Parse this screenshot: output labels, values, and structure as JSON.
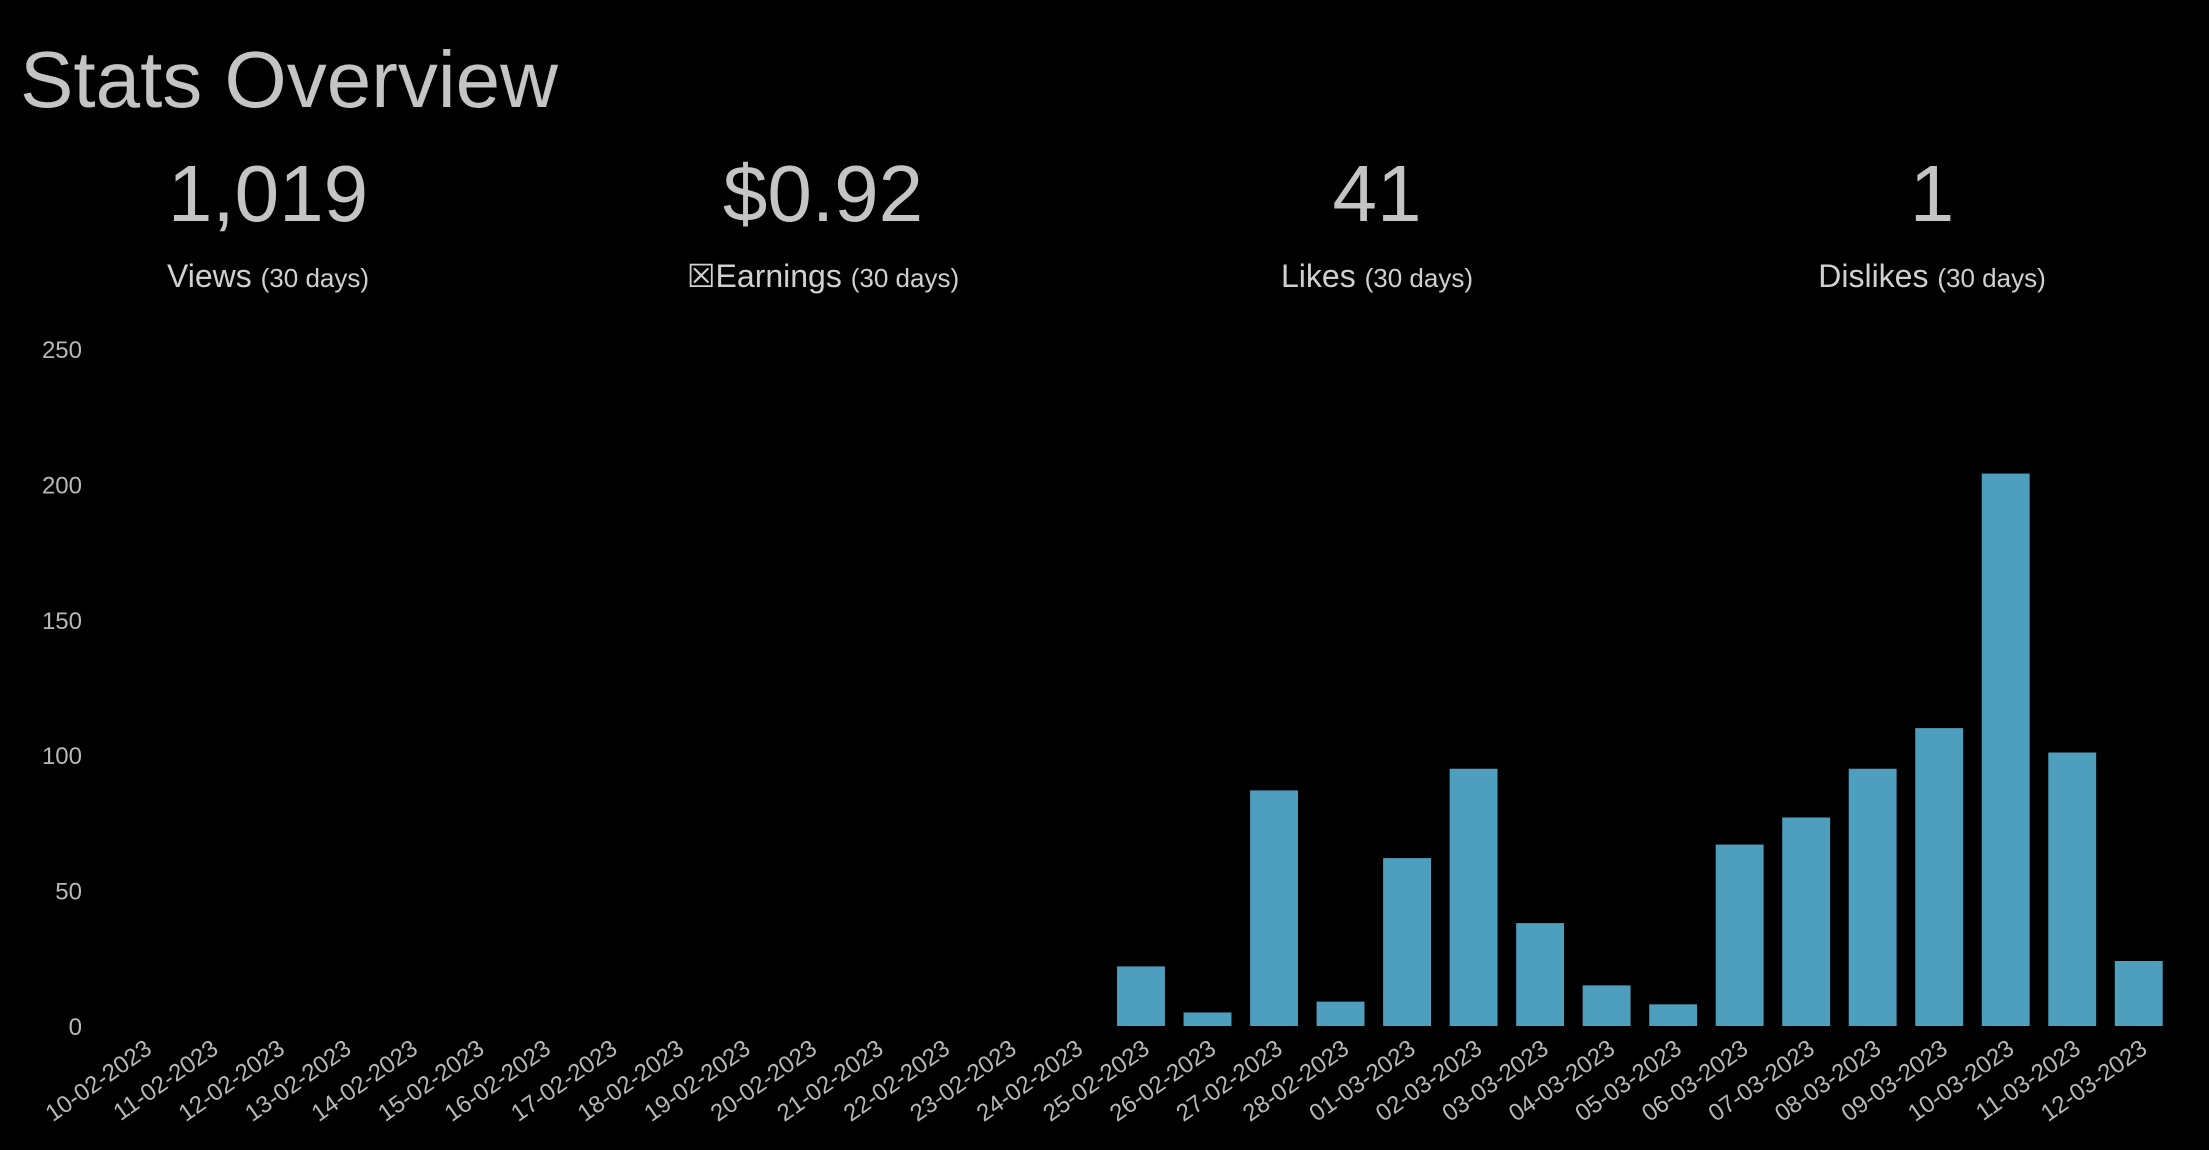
{
  "page_title": "Stats Overview",
  "stats": [
    {
      "value": "1,019",
      "label": "Views",
      "period": "(30 days)"
    },
    {
      "value": "$0.92",
      "label": "☒Earnings",
      "period": "(30 days)"
    },
    {
      "value": "41",
      "label": "Likes",
      "period": "(30 days)"
    },
    {
      "value": "1",
      "label": "Dislikes",
      "period": "(30 days)"
    }
  ],
  "colors": {
    "background": "#000000",
    "bar": "#4e9ebe",
    "text": "#c4c4c4",
    "tick_text": "#b8b8b8"
  },
  "chart_data": {
    "type": "bar",
    "title": "",
    "xlabel": "",
    "ylabel": "",
    "ylim": [
      0,
      250
    ],
    "yticks": [
      0,
      50,
      100,
      150,
      200,
      250
    ],
    "grid": false,
    "categories": [
      "10-02-2023",
      "11-02-2023",
      "12-02-2023",
      "13-02-2023",
      "14-02-2023",
      "15-02-2023",
      "16-02-2023",
      "17-02-2023",
      "18-02-2023",
      "19-02-2023",
      "20-02-2023",
      "21-02-2023",
      "22-02-2023",
      "23-02-2023",
      "24-02-2023",
      "25-02-2023",
      "26-02-2023",
      "27-02-2023",
      "28-02-2023",
      "01-03-2023",
      "02-03-2023",
      "03-03-2023",
      "04-03-2023",
      "05-03-2023",
      "06-03-2023",
      "07-03-2023",
      "08-03-2023",
      "09-03-2023",
      "10-03-2023",
      "11-03-2023",
      "12-03-2023"
    ],
    "values": [
      0,
      0,
      0,
      0,
      0,
      0,
      0,
      0,
      0,
      0,
      0,
      0,
      0,
      0,
      0,
      22,
      5,
      87,
      9,
      62,
      95,
      38,
      15,
      8,
      67,
      77,
      95,
      110,
      204,
      101,
      24
    ]
  }
}
